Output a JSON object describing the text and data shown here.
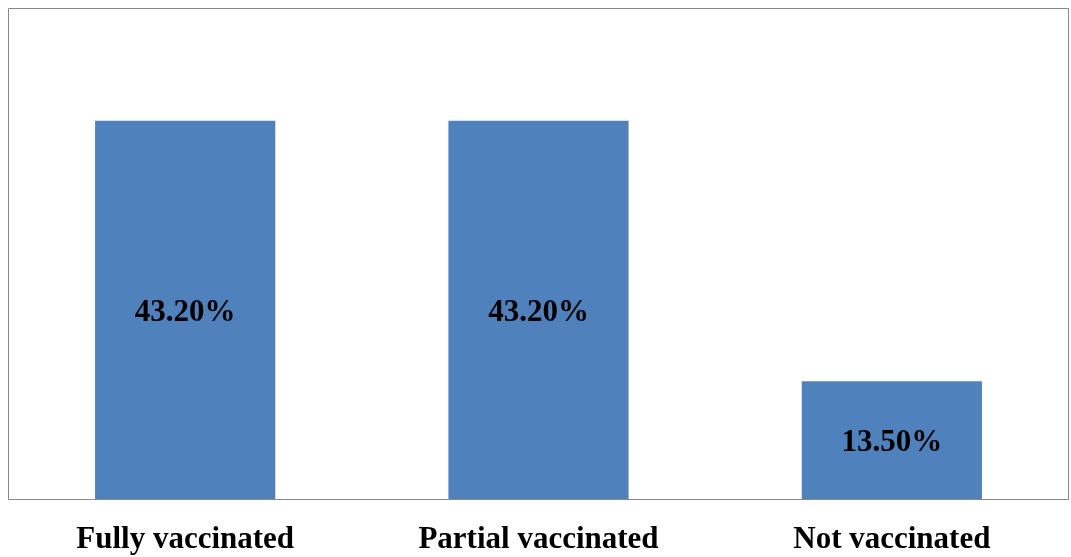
{
  "chart_data": {
    "type": "bar",
    "categories": [
      "Fully vaccinated",
      "Partial vaccinated",
      "Not vaccinated"
    ],
    "values": [
      43.2,
      43.2,
      13.5
    ],
    "value_labels": [
      "43.20%",
      "43.20%",
      "13.50%"
    ],
    "color": "#4f81bd",
    "ylim": [
      0,
      56
    ],
    "grid": false
  }
}
